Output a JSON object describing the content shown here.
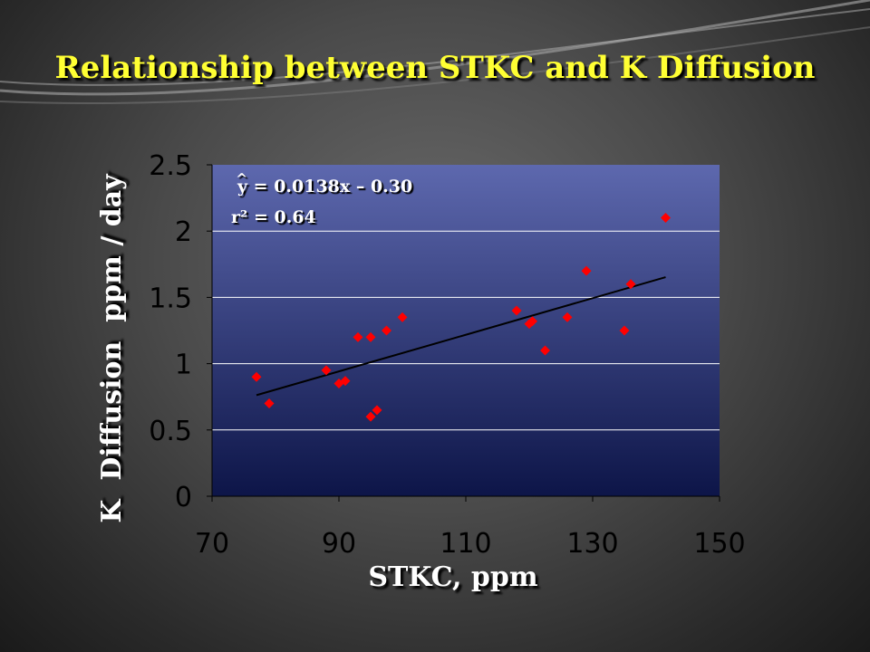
{
  "chart_data": {
    "type": "scatter",
    "title": "Relationship between STKC and K Diffusion",
    "xlabel": "STKC, ppm",
    "ylabel": "K  Diffusion  ppm / day",
    "xlim": [
      70,
      150
    ],
    "ylim": [
      0,
      2.5
    ],
    "x_ticks": [
      "70",
      "90",
      "110",
      "130",
      "150"
    ],
    "y_ticks": [
      "0",
      "0.5",
      "1",
      "1.5",
      "2",
      "2.5"
    ],
    "grid": "horizontal",
    "points": [
      {
        "x": 77,
        "y": 0.9
      },
      {
        "x": 79,
        "y": 0.7
      },
      {
        "x": 88,
        "y": 0.95
      },
      {
        "x": 90,
        "y": 0.85
      },
      {
        "x": 91,
        "y": 0.87
      },
      {
        "x": 93,
        "y": 1.2
      },
      {
        "x": 95,
        "y": 1.2
      },
      {
        "x": 95,
        "y": 0.6
      },
      {
        "x": 96,
        "y": 0.65
      },
      {
        "x": 97.5,
        "y": 1.25
      },
      {
        "x": 100,
        "y": 1.35
      },
      {
        "x": 118,
        "y": 1.4
      },
      {
        "x": 120,
        "y": 1.3
      },
      {
        "x": 120.5,
        "y": 1.32
      },
      {
        "x": 122.5,
        "y": 1.1
      },
      {
        "x": 126,
        "y": 1.35
      },
      {
        "x": 129,
        "y": 1.7
      },
      {
        "x": 135,
        "y": 1.25
      },
      {
        "x": 136,
        "y": 1.6
      },
      {
        "x": 141.5,
        "y": 2.1
      }
    ],
    "trendline": {
      "slope": 0.0138,
      "intercept": -0.3,
      "x_range": [
        77,
        141.5
      ]
    },
    "equation": {
      "hat": "^",
      "line1": "y = 0.0138x – 0.30",
      "line2": "r² = 0.64"
    },
    "colors": {
      "plot_top": "#5d68ae",
      "plot_bottom": "#0d1548",
      "marker": "#ff0000",
      "trendline": "#000000",
      "gridline": "#ffffff",
      "title": "#ffff33"
    }
  }
}
